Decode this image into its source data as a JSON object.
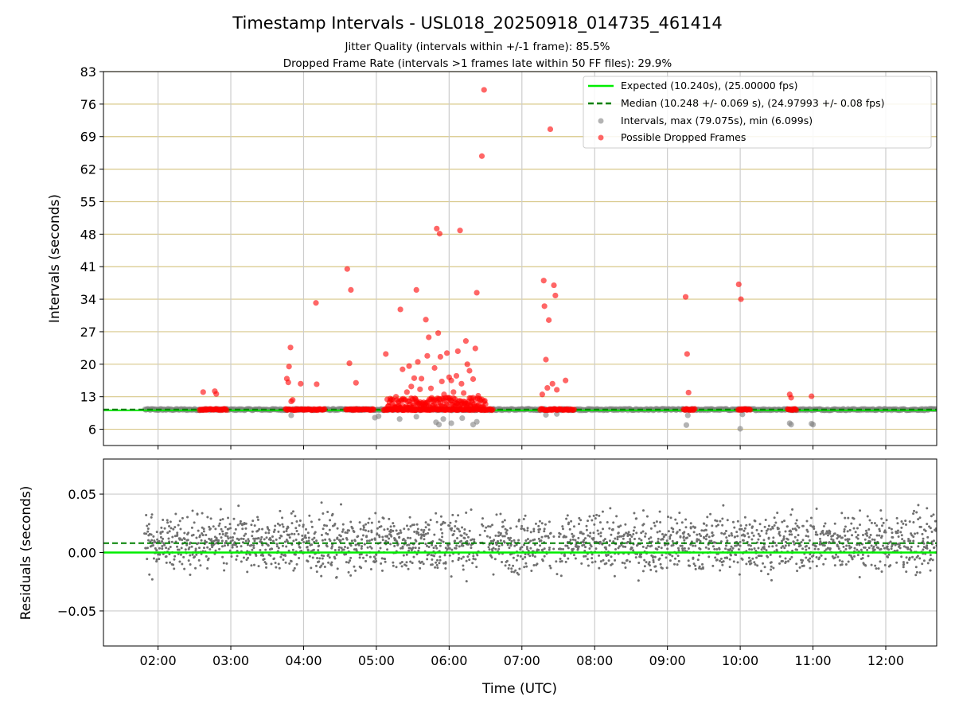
{
  "chart_data": {
    "type": "scatter",
    "title": "Timestamp Intervals - USL018_20250918_014735_461414",
    "subtitles": [
      "Jitter Quality (intervals within +/-1 frame): 85.5%",
      "Dropped Frame Rate (intervals >1 frames late within 50 FF files): 29.9%"
    ],
    "xlabel": "Time (UTC)",
    "x_ticks": [
      "02:00",
      "03:00",
      "04:00",
      "05:00",
      "06:00",
      "07:00",
      "08:00",
      "09:00",
      "10:00",
      "11:00",
      "12:00"
    ],
    "x_range_hours": [
      1.25,
      12.7
    ],
    "colors": {
      "expected": "#00ee00",
      "median": "#008000",
      "intervals": "#808080",
      "dropped": "#ff0000",
      "hgrid_top": "#d8c88a",
      "grid": "#cccccc"
    },
    "panels": [
      {
        "id": "intervals",
        "ylabel": "Intervals (seconds)",
        "ylim": [
          2.5,
          83
        ],
        "y_ticks": [
          "6",
          "13",
          "20",
          "27",
          "34",
          "41",
          "48",
          "55",
          "62",
          "69",
          "76",
          "83"
        ],
        "expected": 10.24,
        "median": 10.248,
        "legend": [
          "Expected (10.240s), (25.00000 fps)",
          "Median (10.248 +/- 0.069 s), (24.97993 +/- 0.08 fps)",
          "Intervals, max (79.075s), min (6.099s)",
          "Possible Dropped Frames"
        ],
        "dropped_points": [
          [
            2.62,
            14.0
          ],
          [
            2.78,
            14.2
          ],
          [
            2.8,
            13.6
          ],
          [
            3.77,
            16.9
          ],
          [
            3.79,
            16.1
          ],
          [
            3.8,
            19.5
          ],
          [
            3.82,
            23.6
          ],
          [
            3.83,
            12.0
          ],
          [
            3.85,
            12.3
          ],
          [
            3.96,
            15.8
          ],
          [
            4.17,
            33.2
          ],
          [
            4.18,
            15.7
          ],
          [
            4.6,
            40.5
          ],
          [
            4.63,
            20.2
          ],
          [
            4.65,
            36.0
          ],
          [
            4.72,
            16.0
          ],
          [
            5.13,
            22.2
          ],
          [
            5.27,
            13.0
          ],
          [
            5.31,
            12.0
          ],
          [
            5.33,
            31.8
          ],
          [
            5.36,
            18.9
          ],
          [
            5.42,
            14.0
          ],
          [
            5.45,
            19.6
          ],
          [
            5.48,
            15.2
          ],
          [
            5.5,
            12.5
          ],
          [
            5.52,
            17.0
          ],
          [
            5.55,
            36.0
          ],
          [
            5.57,
            20.5
          ],
          [
            5.6,
            14.6
          ],
          [
            5.62,
            16.9
          ],
          [
            5.65,
            11.8
          ],
          [
            5.68,
            29.6
          ],
          [
            5.7,
            21.8
          ],
          [
            5.72,
            25.8
          ],
          [
            5.75,
            14.8
          ],
          [
            5.78,
            12.0
          ],
          [
            5.8,
            19.2
          ],
          [
            5.83,
            49.2
          ],
          [
            5.85,
            26.7
          ],
          [
            5.87,
            48.1
          ],
          [
            5.88,
            21.6
          ],
          [
            5.9,
            16.3
          ],
          [
            5.93,
            13.5
          ],
          [
            5.97,
            22.4
          ],
          [
            6.0,
            17.2
          ],
          [
            6.03,
            16.5
          ],
          [
            6.06,
            14.0
          ],
          [
            6.08,
            12.5
          ],
          [
            6.1,
            17.5
          ],
          [
            6.12,
            22.8
          ],
          [
            6.15,
            48.8
          ],
          [
            6.17,
            15.8
          ],
          [
            6.2,
            13.8
          ],
          [
            6.23,
            25.0
          ],
          [
            6.25,
            20.0
          ],
          [
            6.28,
            18.6
          ],
          [
            6.3,
            12.7
          ],
          [
            6.33,
            16.8
          ],
          [
            6.36,
            23.4
          ],
          [
            6.38,
            35.4
          ],
          [
            6.4,
            13.2
          ],
          [
            6.45,
            64.8
          ],
          [
            6.48,
            79.07
          ],
          [
            7.28,
            13.5
          ],
          [
            7.3,
            38.0
          ],
          [
            7.31,
            32.5
          ],
          [
            7.33,
            21.0
          ],
          [
            7.35,
            14.9
          ],
          [
            7.37,
            29.5
          ],
          [
            7.39,
            70.6
          ],
          [
            7.42,
            15.8
          ],
          [
            7.44,
            37.0
          ],
          [
            7.46,
            34.8
          ],
          [
            7.48,
            14.5
          ],
          [
            7.6,
            16.5
          ],
          [
            9.25,
            34.5
          ],
          [
            9.27,
            22.2
          ],
          [
            9.29,
            13.9
          ],
          [
            9.98,
            37.2
          ],
          [
            10.01,
            34.0
          ],
          [
            10.68,
            13.5
          ],
          [
            10.7,
            12.8
          ],
          [
            10.98,
            13.1
          ]
        ],
        "dropped_bands": [
          [
            2.57,
            2.95
          ],
          [
            3.75,
            4.3
          ],
          [
            4.58,
            4.97
          ],
          [
            5.1,
            6.6
          ],
          [
            7.25,
            7.72
          ],
          [
            9.22,
            9.38
          ],
          [
            9.97,
            10.15
          ],
          [
            10.65,
            10.78
          ]
        ],
        "interval_points": [
          [
            4.98,
            8.5
          ],
          [
            5.03,
            8.8
          ],
          [
            5.32,
            8.2
          ],
          [
            5.55,
            8.7
          ],
          [
            5.82,
            7.5
          ],
          [
            5.86,
            7.0
          ],
          [
            5.92,
            8.2
          ],
          [
            6.03,
            7.3
          ],
          [
            6.18,
            8.4
          ],
          [
            6.33,
            7.0
          ],
          [
            6.38,
            7.6
          ],
          [
            3.83,
            9.0
          ],
          [
            7.33,
            9.1
          ],
          [
            7.48,
            9.3
          ],
          [
            9.26,
            6.9
          ],
          [
            9.28,
            9.0
          ],
          [
            10.0,
            6.1
          ],
          [
            10.03,
            9.2
          ],
          [
            10.68,
            7.3
          ],
          [
            10.7,
            7.0
          ],
          [
            10.98,
            7.2
          ],
          [
            11.0,
            7.0
          ]
        ],
        "interval_band": [
          1.82,
          12.7
        ]
      },
      {
        "id": "residuals",
        "ylabel": "Residuals (seconds)",
        "ylim": [
          -0.08,
          0.08
        ],
        "y_ticks": [
          "−0.05",
          "0.00",
          "0.05"
        ],
        "y_tick_values": [
          -0.05,
          0.0,
          0.05
        ],
        "expected": 0.0,
        "median": 0.008,
        "residual_range": [
          1.82,
          12.7
        ]
      }
    ]
  }
}
